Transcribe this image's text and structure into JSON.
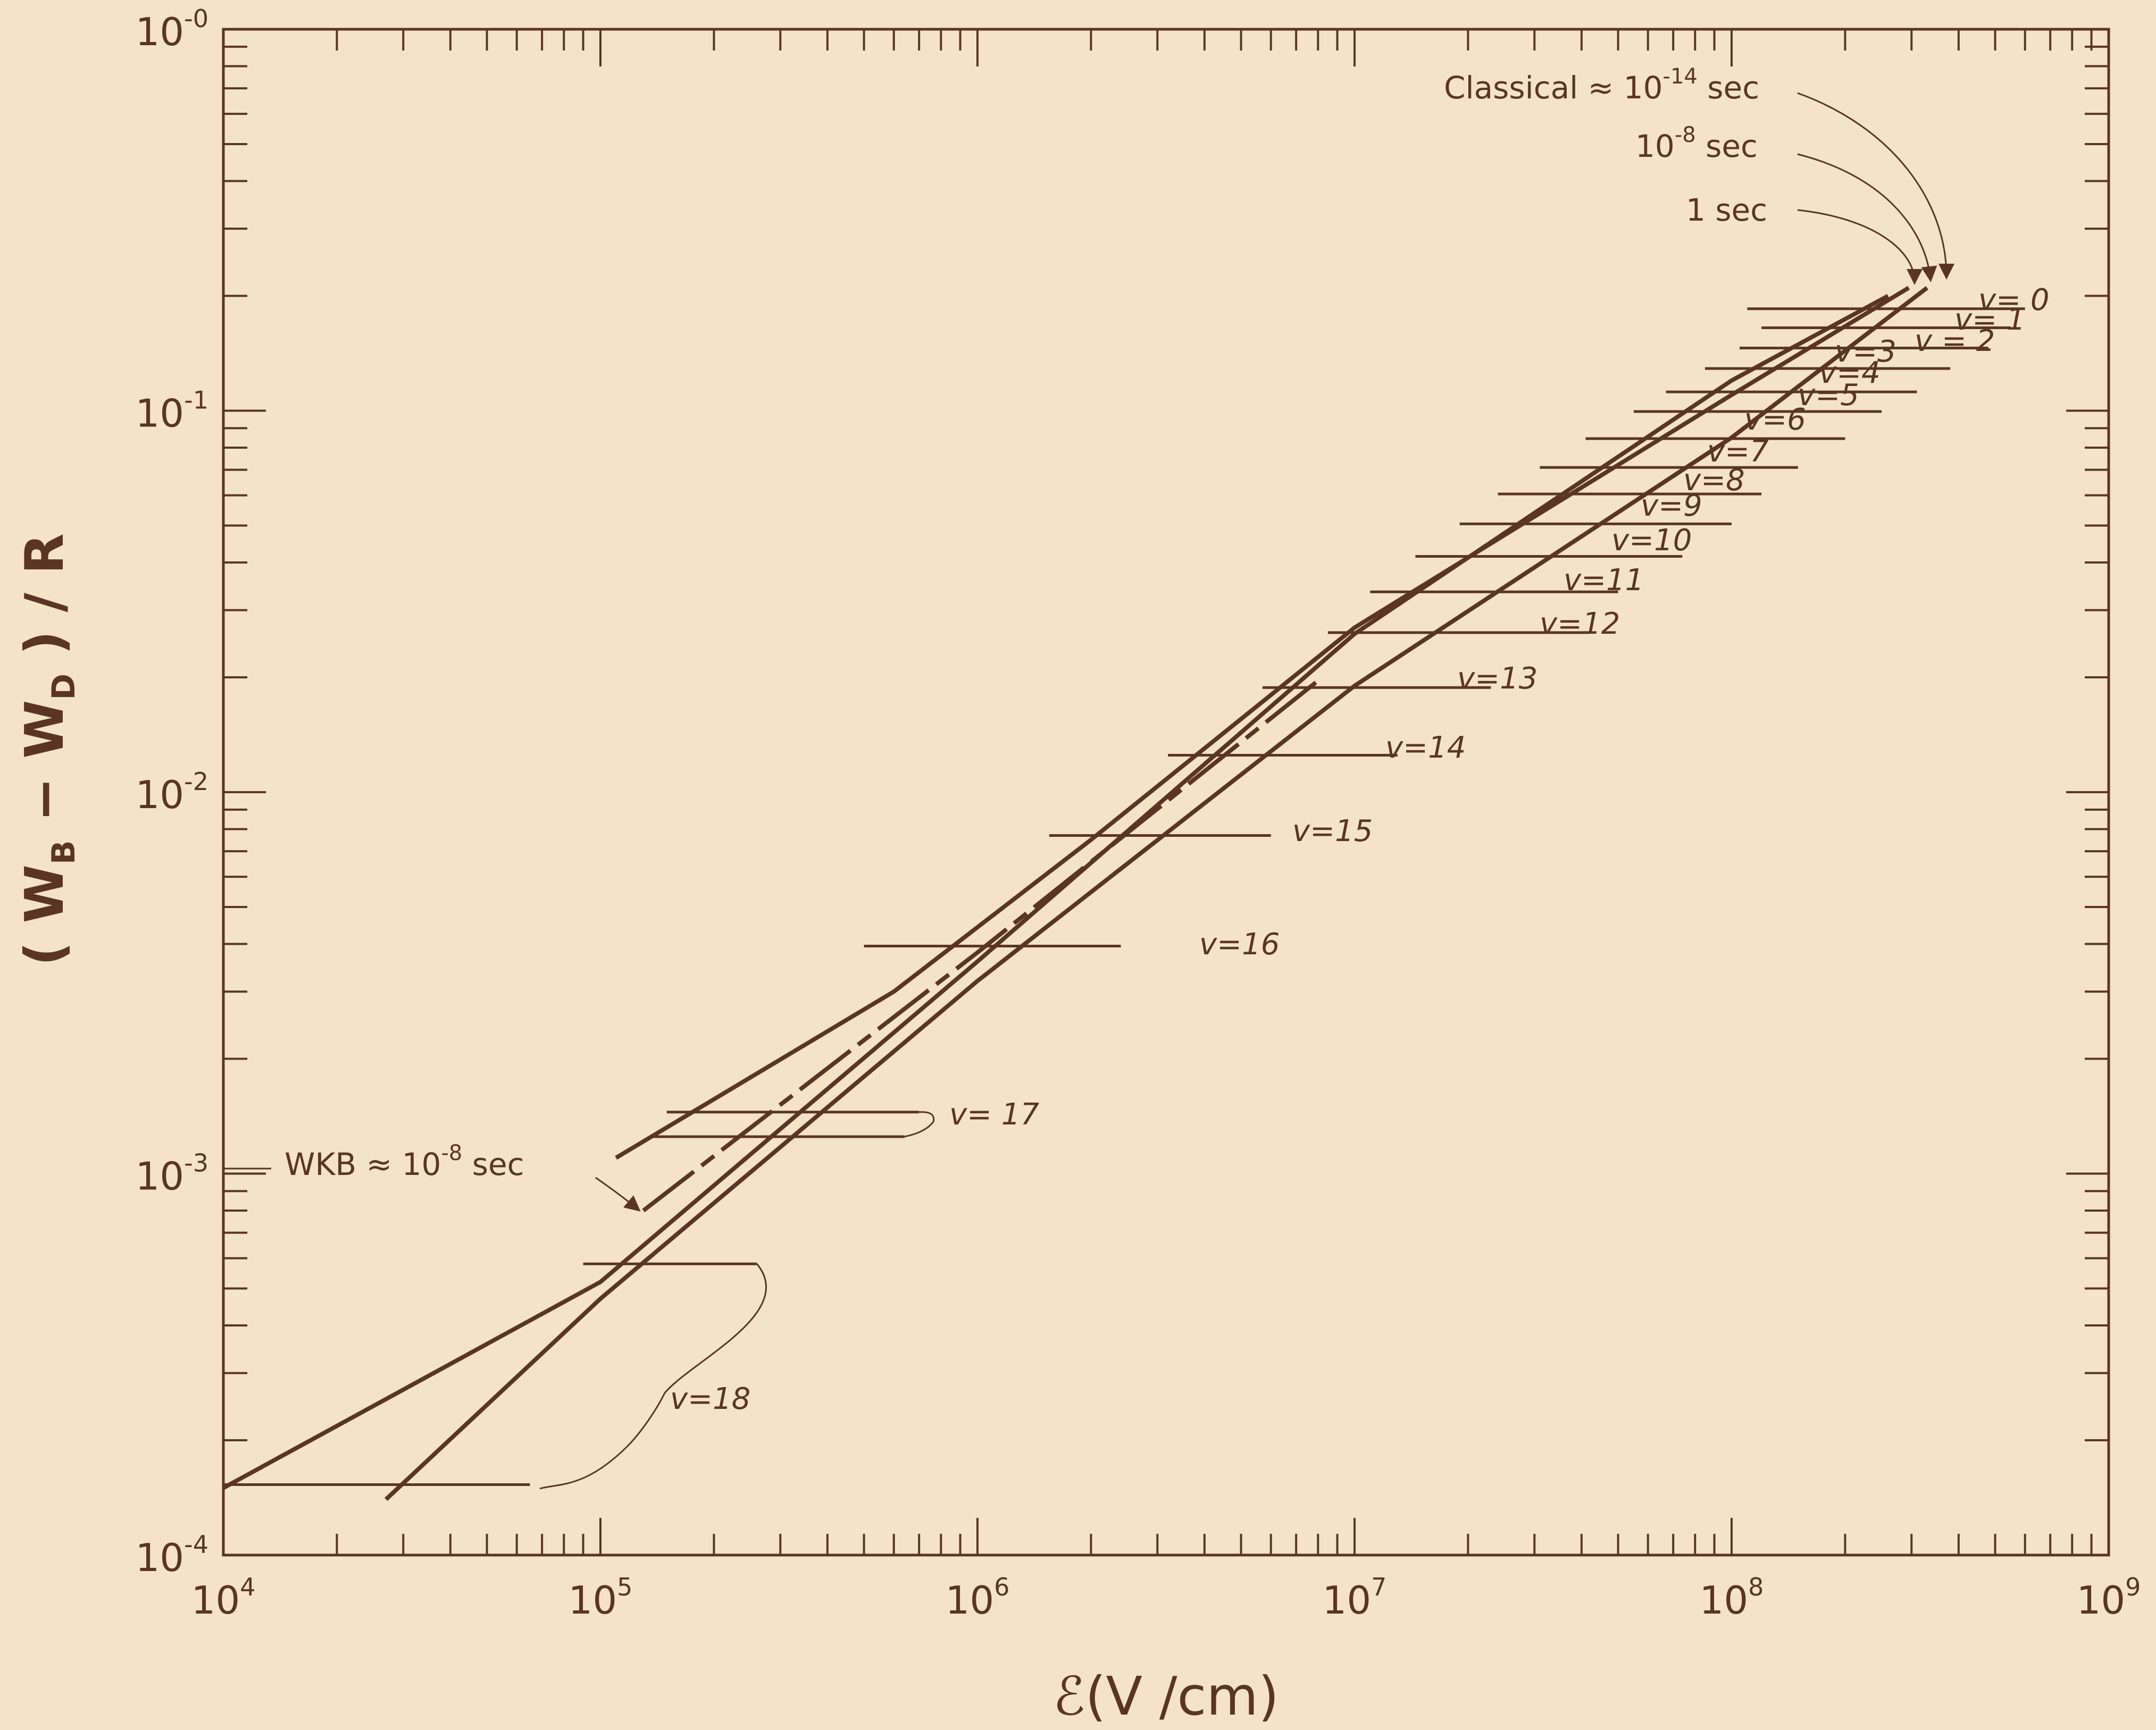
{
  "chart_data": {
    "type": "line",
    "scale": {
      "x": "log",
      "y": "log"
    },
    "xlim": [
      10000,
      1000000000
    ],
    "ylim": [
      0.0001,
      1
    ],
    "x_ticks": [
      {
        "value": 10000,
        "base": "10",
        "exp": "4"
      },
      {
        "value": 100000,
        "base": "10",
        "exp": "5"
      },
      {
        "value": 1000000,
        "base": "10",
        "exp": "6"
      },
      {
        "value": 10000000,
        "base": "10",
        "exp": "7"
      },
      {
        "value": 100000000,
        "base": "10",
        "exp": "8"
      },
      {
        "value": 1000000000,
        "base": "10",
        "exp": "9"
      }
    ],
    "y_ticks": [
      {
        "value": 1,
        "base": "10",
        "exp": "-0"
      },
      {
        "value": 0.1,
        "base": "10",
        "exp": "-1"
      },
      {
        "value": 0.01,
        "base": "10",
        "exp": "-2"
      },
      {
        "value": 0.001,
        "base": "10",
        "exp": "-3"
      },
      {
        "value": 0.0001,
        "base": "10",
        "exp": "-4"
      }
    ],
    "xlabel": "ℰ(V /cm)",
    "ylabel": {
      "open": "( W",
      "sub1": "B",
      "mid": " − W",
      "sub2": "D",
      "close": " ) / R"
    },
    "series": [
      {
        "name": "Classical ≈ 10⁻¹⁴ sec",
        "style": "solid",
        "x": [
          10000,
          100000,
          1000000,
          10000000,
          100000000,
          260000000
        ],
        "y": [
          0.00015,
          0.00052,
          0.0036,
          0.026,
          0.12,
          0.2
        ]
      },
      {
        "name": "10⁻⁸ sec",
        "style": "solid",
        "x": [
          110000,
          600000,
          2000000,
          10000000,
          100000000,
          295000000
        ],
        "y": [
          0.0011,
          0.003,
          0.0075,
          0.027,
          0.11,
          0.21
        ]
      },
      {
        "name": "WKB ≈ 10⁻⁸ sec",
        "style": "dashed",
        "x": [
          130000,
          1000000,
          8000000
        ],
        "y": [
          0.0008,
          0.0038,
          0.0196
        ]
      },
      {
        "name": "1 sec",
        "style": "solid",
        "x": [
          27000,
          100000,
          1000000,
          10000000,
          100000000,
          330000000
        ],
        "y": [
          0.00014,
          0.00047,
          0.0032,
          0.019,
          0.085,
          0.21
        ]
      }
    ],
    "levels": [
      {
        "label": "v= 0",
        "y": 0.185,
        "x_start": 110000000,
        "x_end": 600000000
      },
      {
        "label": "v= 1",
        "y": 0.165,
        "x_start": 120000000,
        "x_end": 550000000
      },
      {
        "label": "v = 2",
        "y": 0.146,
        "x_start": 105000000,
        "x_end": 480000000
      },
      {
        "label": "v=3",
        "y": 0.129,
        "x_start": 85000000,
        "x_end": 380000000
      },
      {
        "label": "v=4",
        "y": 0.112,
        "x_start": 67000000,
        "x_end": 310000000
      },
      {
        "label": "v=5",
        "y": 0.0995,
        "x_start": 55000000,
        "x_end": 250000000
      },
      {
        "label": "v=6",
        "y": 0.0845,
        "x_start": 41000000,
        "x_end": 200000000
      },
      {
        "label": "v=7",
        "y": 0.071,
        "x_start": 31000000,
        "x_end": 150000000
      },
      {
        "label": "v=8",
        "y": 0.0605,
        "x_start": 24000000,
        "x_end": 120000000
      },
      {
        "label": "v=9",
        "y": 0.0505,
        "x_start": 19000000,
        "x_end": 100000000
      },
      {
        "label": "v=10",
        "y": 0.0415,
        "x_start": 14500000,
        "x_end": 74000000
      },
      {
        "label": "v=11",
        "y": 0.0335,
        "x_start": 11000000,
        "x_end": 50000000
      },
      {
        "label": "v=12",
        "y": 0.0262,
        "x_start": 8500000,
        "x_end": 42000000
      },
      {
        "label": "v=13",
        "y": 0.0188,
        "x_start": 5700000,
        "x_end": 23000000
      },
      {
        "label": "v=14",
        "y": 0.0125,
        "x_start": 3200000,
        "x_end": 13000000
      },
      {
        "label": "v=15",
        "y": 0.0077,
        "x_start": 1550000,
        "x_end": 6000000
      },
      {
        "label": "v=16",
        "y": 0.00395,
        "x_start": 500000,
        "x_end": 2400000
      },
      {
        "label": "v= 17",
        "y": 0.00145,
        "x_start": 150000,
        "x_end": 700000
      },
      {
        "label": "v= 17",
        "y": 0.00125,
        "x_start": 135000,
        "x_end": 640000
      },
      {
        "label": "v=18",
        "y": 0.00058,
        "x_start": 90000,
        "x_end": 260000
      },
      {
        "label": "v=18",
        "y": 0.000153,
        "x_start": 10000,
        "x_end": 65000
      }
    ],
    "annotations": [
      {
        "id": "classical",
        "text": "Classical ≈ 10",
        "sup": "-14",
        "after": " sec"
      },
      {
        "id": "ten8",
        "text": "10",
        "sup": "-8",
        "after": " sec"
      },
      {
        "id": "onesec",
        "text": "1 sec",
        "sup": "",
        "after": ""
      },
      {
        "id": "wkb",
        "text": "WKB ≈ 10",
        "sup": "-8",
        "after": " sec"
      }
    ],
    "grid": false,
    "legend": "none"
  }
}
